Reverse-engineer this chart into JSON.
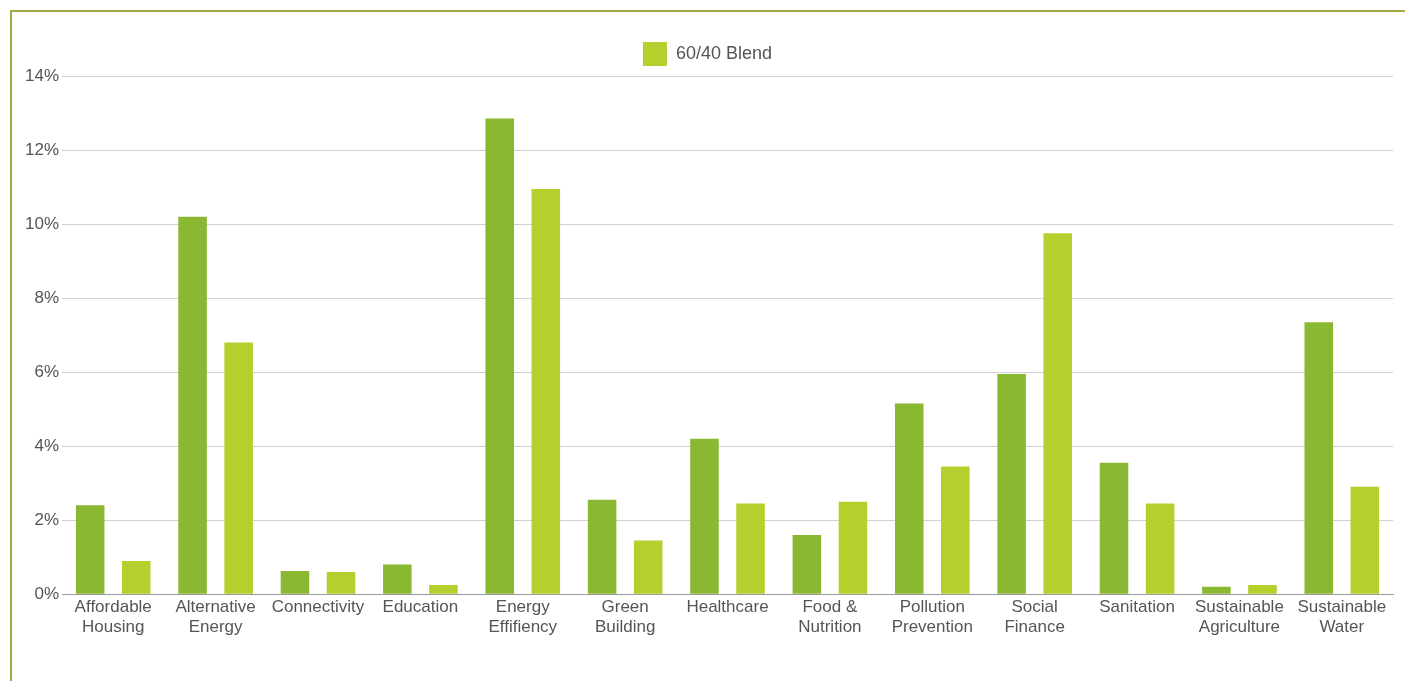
{
  "chart_data": {
    "type": "bar",
    "categories": [
      "Affordable Housing",
      "Alternative Energy",
      "Connectivity",
      "Education",
      "Energy Effifiency",
      "Green Building",
      "Healthcare",
      "Food & Nutrition",
      "Pollution Prevention",
      "Social Finance",
      "Sanitation",
      "Sustainable Agriculture",
      "Sustainable Water"
    ],
    "series": [
      {
        "color": "#8ab833",
        "values": [
          2.4,
          10.2,
          0.63,
          0.8,
          12.85,
          2.55,
          4.2,
          1.6,
          5.15,
          5.95,
          3.55,
          0.2,
          7.35
        ]
      },
      {
        "name": "60/40 Blend",
        "color": "#b5cf2c",
        "values": [
          0.9,
          6.8,
          0.6,
          0.25,
          10.95,
          1.45,
          2.45,
          2.5,
          3.45,
          9.75,
          2.45,
          0.25,
          2.9
        ]
      }
    ],
    "ylim": [
      0,
      14
    ],
    "yticks": [
      {
        "value": 0,
        "label": "0%"
      },
      {
        "value": 2,
        "label": "2%"
      },
      {
        "value": 4,
        "label": "4%"
      },
      {
        "value": 6,
        "label": "6%"
      },
      {
        "value": 8,
        "label": "8%"
      },
      {
        "value": 10,
        "label": "10%"
      },
      {
        "value": 12,
        "label": "12%"
      },
      {
        "value": 14,
        "label": "14%"
      }
    ],
    "grid": "y",
    "legend": "top"
  }
}
